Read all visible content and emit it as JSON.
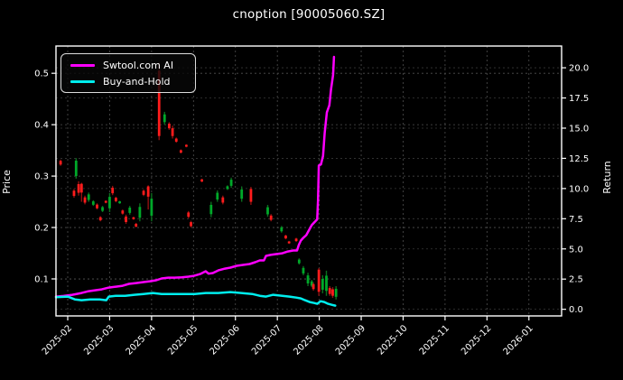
{
  "title": "cnoption [90005060.SZ]",
  "colors": {
    "background": "#000000",
    "axes": "#ffffff",
    "grid_major": "#4f4f4f",
    "grid_minor": "#383838",
    "ai_line": "#ff00ff",
    "bh_line": "#00eeee",
    "candle_red": "#ff1c1c",
    "candle_red_dim": "#8f1010",
    "candle_green": "#00a829",
    "candle_green_dim": "#0b6e1e"
  },
  "legend": {
    "items": [
      {
        "label": "Swtool.com AI",
        "color": "#ff00ff"
      },
      {
        "label": "Buy-and-Hold",
        "color": "#00eeee"
      }
    ]
  },
  "axes": {
    "left_label": "Price",
    "right_label": "Return",
    "x_tick_labels": [
      "2025-02",
      "2025-03",
      "2025-04",
      "2025-05",
      "2025-06",
      "2025-07",
      "2025-08",
      "2025-09",
      "2025-10",
      "2025-11",
      "2025-12",
      "2026-01"
    ],
    "x_tick_t": [
      0,
      1,
      2,
      3,
      4,
      5,
      6,
      7,
      8,
      9,
      10,
      11
    ],
    "price_tick_values": [
      0.1,
      0.2,
      0.3,
      0.4,
      0.5
    ],
    "price_tick_labels": [
      "0.1",
      "0.2",
      "0.3",
      "0.4",
      "0.5"
    ],
    "return_tick_values": [
      0,
      2.5,
      5,
      7.5,
      10,
      12.5,
      15,
      17.5,
      20
    ],
    "return_tick_labels": [
      "0.0",
      "2.5",
      "5.0",
      "7.5",
      "10.0",
      "12.5",
      "15.0",
      "17.5",
      "20.0"
    ]
  },
  "chart_data": {
    "type": "candlestick+line",
    "title": "cnoption [90005060.SZ]",
    "ylabel_left": "Price",
    "ylabel_right": "Return",
    "x_unit": "months_since_2025-02",
    "x_range": [
      -0.28,
      11.78
    ],
    "price_range": [
      0.028,
      0.553
    ],
    "return_range": [
      -0.55,
      21.8
    ],
    "grid": true,
    "legend_position": "upper-left",
    "series": [
      {
        "name": "Swtool.com AI",
        "axis": "return",
        "color": "#ff00ff",
        "points": [
          [
            -0.28,
            1.05
          ],
          [
            -0.1,
            1.1
          ],
          [
            0.11,
            1.2
          ],
          [
            0.33,
            1.35
          ],
          [
            0.5,
            1.5
          ],
          [
            0.65,
            1.57
          ],
          [
            0.81,
            1.65
          ],
          [
            0.98,
            1.8
          ],
          [
            1.15,
            1.87
          ],
          [
            1.31,
            1.95
          ],
          [
            1.46,
            2.1
          ],
          [
            1.63,
            2.17
          ],
          [
            1.81,
            2.25
          ],
          [
            1.96,
            2.32
          ],
          [
            2.11,
            2.4
          ],
          [
            2.24,
            2.55
          ],
          [
            2.4,
            2.62
          ],
          [
            2.55,
            2.62
          ],
          [
            2.72,
            2.65
          ],
          [
            2.88,
            2.7
          ],
          [
            3.01,
            2.77
          ],
          [
            3.16,
            2.92
          ],
          [
            3.29,
            3.15
          ],
          [
            3.36,
            2.95
          ],
          [
            3.46,
            3.0
          ],
          [
            3.59,
            3.22
          ],
          [
            3.75,
            3.37
          ],
          [
            3.88,
            3.45
          ],
          [
            4.03,
            3.6
          ],
          [
            4.18,
            3.67
          ],
          [
            4.34,
            3.75
          ],
          [
            4.47,
            3.9
          ],
          [
            4.58,
            4.05
          ],
          [
            4.68,
            4.05
          ],
          [
            4.73,
            4.42
          ],
          [
            4.84,
            4.5
          ],
          [
            4.97,
            4.57
          ],
          [
            5.12,
            4.64
          ],
          [
            5.25,
            4.79
          ],
          [
            5.38,
            4.87
          ],
          [
            5.47,
            4.87
          ],
          [
            5.51,
            5.32
          ],
          [
            5.56,
            5.69
          ],
          [
            5.62,
            5.92
          ],
          [
            5.69,
            6.14
          ],
          [
            5.75,
            6.52
          ],
          [
            5.82,
            6.97
          ],
          [
            5.88,
            7.19
          ],
          [
            5.95,
            7.45
          ],
          [
            5.97,
            9.0
          ],
          [
            5.99,
            11.9
          ],
          [
            6.04,
            12.0
          ],
          [
            6.09,
            12.7
          ],
          [
            6.13,
            14.6
          ],
          [
            6.18,
            16.3
          ],
          [
            6.24,
            16.9
          ],
          [
            6.28,
            18.2
          ],
          [
            6.33,
            19.4
          ],
          [
            6.35,
            20.9
          ]
        ]
      },
      {
        "name": "Buy-and-Hold",
        "axis": "return",
        "color": "#00eeee",
        "points": [
          [
            -0.28,
            1.0
          ],
          [
            0,
            1.05
          ],
          [
            0.17,
            0.82
          ],
          [
            0.33,
            0.75
          ],
          [
            0.54,
            0.82
          ],
          [
            0.76,
            0.82
          ],
          [
            0.92,
            0.75
          ],
          [
            0.98,
            1.05
          ],
          [
            1.15,
            1.12
          ],
          [
            1.37,
            1.12
          ],
          [
            1.59,
            1.2
          ],
          [
            1.81,
            1.27
          ],
          [
            2.03,
            1.35
          ],
          [
            2.24,
            1.27
          ],
          [
            2.51,
            1.27
          ],
          [
            2.77,
            1.27
          ],
          [
            3.03,
            1.27
          ],
          [
            3.29,
            1.35
          ],
          [
            3.59,
            1.35
          ],
          [
            3.88,
            1.42
          ],
          [
            4.14,
            1.35
          ],
          [
            4.4,
            1.27
          ],
          [
            4.58,
            1.12
          ],
          [
            4.73,
            1.05
          ],
          [
            4.9,
            1.2
          ],
          [
            5.12,
            1.12
          ],
          [
            5.29,
            1.05
          ],
          [
            5.45,
            0.97
          ],
          [
            5.56,
            0.9
          ],
          [
            5.66,
            0.75
          ],
          [
            5.77,
            0.6
          ],
          [
            5.88,
            0.52
          ],
          [
            5.95,
            0.45
          ],
          [
            6.03,
            0.67
          ],
          [
            6.12,
            0.6
          ],
          [
            6.21,
            0.45
          ],
          [
            6.3,
            0.37
          ],
          [
            6.38,
            0.3
          ]
        ]
      }
    ],
    "candles": [
      {
        "t": -0.17,
        "low": 0.32,
        "high": 0.332,
        "color": "red"
      },
      {
        "t": 0.15,
        "low": 0.258,
        "high": 0.275,
        "color": "red"
      },
      {
        "t": 0.2,
        "low": 0.295,
        "high": 0.335,
        "color": "green",
        "body": [
          0.3,
          0.33
        ]
      },
      {
        "t": 0.26,
        "low": 0.262,
        "high": 0.29,
        "color": "red"
      },
      {
        "t": 0.33,
        "low": 0.25,
        "high": 0.287,
        "color": "red",
        "body": [
          0.268,
          0.285
        ]
      },
      {
        "t": 0.41,
        "low": 0.245,
        "high": 0.262,
        "color": "red"
      },
      {
        "t": 0.5,
        "low": 0.25,
        "high": 0.268,
        "color": "green"
      },
      {
        "t": 0.61,
        "low": 0.242,
        "high": 0.253,
        "color": "green"
      },
      {
        "t": 0.7,
        "low": 0.235,
        "high": 0.247,
        "color": "red"
      },
      {
        "t": 0.78,
        "low": 0.212,
        "high": 0.222,
        "color": "red"
      },
      {
        "t": 0.83,
        "low": 0.23,
        "high": 0.242,
        "color": "green"
      },
      {
        "t": 0.91,
        "low": 0.247,
        "high": 0.253,
        "color": "red"
      },
      {
        "t": 1.0,
        "low": 0.23,
        "high": 0.267,
        "color": "green"
      },
      {
        "t": 1.07,
        "low": 0.263,
        "high": 0.281,
        "color": "red"
      },
      {
        "t": 1.15,
        "low": 0.249,
        "high": 0.26,
        "color": "red"
      },
      {
        "t": 1.24,
        "low": 0.246,
        "high": 0.252,
        "color": "green"
      },
      {
        "t": 1.31,
        "low": 0.225,
        "high": 0.235,
        "color": "red"
      },
      {
        "t": 1.39,
        "low": 0.207,
        "high": 0.225,
        "color": "red"
      },
      {
        "t": 1.48,
        "low": 0.225,
        "high": 0.242,
        "color": "green"
      },
      {
        "t": 1.57,
        "low": 0.215,
        "high": 0.221,
        "color": "red"
      },
      {
        "t": 1.63,
        "low": 0.2,
        "high": 0.209,
        "color": "red"
      },
      {
        "t": 1.72,
        "low": 0.212,
        "high": 0.247,
        "color": "green"
      },
      {
        "t": 1.81,
        "low": 0.261,
        "high": 0.274,
        "color": "red"
      },
      {
        "t": 1.92,
        "low": 0.235,
        "high": 0.282,
        "color": "red",
        "body": [
          0.26,
          0.28
        ]
      },
      {
        "t": 2.0,
        "low": 0.212,
        "high": 0.267,
        "color": "green"
      },
      {
        "t": 2.18,
        "low": 0.37,
        "high": 0.52,
        "color": "red",
        "body": [
          0.378,
          0.505
        ]
      },
      {
        "t": 2.31,
        "low": 0.4,
        "high": 0.425,
        "color": "green"
      },
      {
        "t": 2.42,
        "low": 0.39,
        "high": 0.405,
        "color": "red"
      },
      {
        "t": 2.5,
        "low": 0.373,
        "high": 0.398,
        "color": "red"
      },
      {
        "t": 2.59,
        "low": 0.365,
        "high": 0.375,
        "color": "red"
      },
      {
        "t": 2.7,
        "low": 0.344,
        "high": 0.352,
        "color": "red"
      },
      {
        "t": 2.83,
        "low": 0.356,
        "high": 0.362,
        "color": "red"
      },
      {
        "t": 2.88,
        "low": 0.218,
        "high": 0.232,
        "color": "red"
      },
      {
        "t": 2.94,
        "low": 0.2,
        "high": 0.213,
        "color": "red"
      },
      {
        "t": 3.2,
        "low": 0.288,
        "high": 0.295,
        "color": "red"
      },
      {
        "t": 3.42,
        "low": 0.22,
        "high": 0.25,
        "color": "green"
      },
      {
        "t": 3.57,
        "low": 0.25,
        "high": 0.272,
        "color": "green"
      },
      {
        "t": 3.7,
        "low": 0.245,
        "high": 0.262,
        "color": "red"
      },
      {
        "t": 3.81,
        "low": 0.273,
        "high": 0.282,
        "color": "green"
      },
      {
        "t": 3.9,
        "low": 0.277,
        "high": 0.297,
        "color": "green"
      },
      {
        "t": 4.15,
        "low": 0.25,
        "high": 0.28,
        "color": "green"
      },
      {
        "t": 4.37,
        "low": 0.244,
        "high": 0.279,
        "color": "red",
        "body": [
          0.25,
          0.275
        ]
      },
      {
        "t": 4.77,
        "low": 0.221,
        "high": 0.244,
        "color": "green"
      },
      {
        "t": 4.85,
        "low": 0.212,
        "high": 0.226,
        "color": "red"
      },
      {
        "t": 5.1,
        "low": 0.19,
        "high": 0.203,
        "color": "green"
      },
      {
        "t": 5.2,
        "low": 0.177,
        "high": 0.186,
        "color": "red"
      },
      {
        "t": 5.28,
        "low": 0.168,
        "high": 0.174,
        "color": "red"
      },
      {
        "t": 5.45,
        "low": 0.172,
        "high": 0.18,
        "color": "red"
      },
      {
        "t": 5.52,
        "low": 0.128,
        "high": 0.14,
        "color": "green"
      },
      {
        "t": 5.62,
        "low": 0.107,
        "high": 0.125,
        "color": "green"
      },
      {
        "t": 5.73,
        "low": 0.086,
        "high": 0.112,
        "color": "green"
      },
      {
        "t": 5.82,
        "low": 0.084,
        "high": 0.098,
        "color": "green"
      },
      {
        "t": 5.86,
        "low": 0.077,
        "high": 0.093,
        "color": "red"
      },
      {
        "t": 5.99,
        "low": 0.067,
        "high": 0.121,
        "color": "red",
        "body": [
          0.075,
          0.118
        ]
      },
      {
        "t": 6.08,
        "low": 0.072,
        "high": 0.107,
        "color": "green"
      },
      {
        "t": 6.17,
        "low": 0.067,
        "high": 0.116,
        "color": "green"
      },
      {
        "t": 6.25,
        "low": 0.067,
        "high": 0.086,
        "color": "red"
      },
      {
        "t": 6.32,
        "low": 0.063,
        "high": 0.084,
        "color": "red"
      },
      {
        "t": 6.4,
        "low": 0.06,
        "high": 0.086,
        "color": "green"
      }
    ]
  }
}
